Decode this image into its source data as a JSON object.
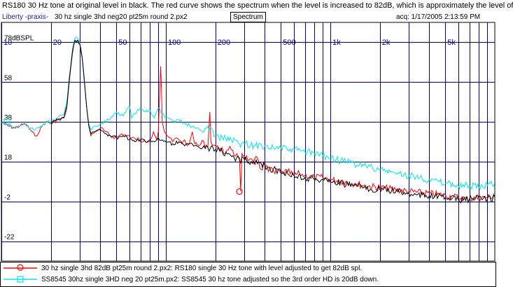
{
  "header": {
    "caption": "RS180 30 Hz tone at original level in black.  The red curve shows the spectrum when the level is increased to 82dB, which is approximately the level of",
    "app_name": "Liberty -praxis-",
    "file_name": "30 hz single 3hd neg20 pt25m round 2.px2",
    "mode_button": "Spectrum",
    "acq": "acq: 1/17/2005 2:13:59 PM"
  },
  "colors": {
    "background": "#ffffff",
    "grid": "#000080",
    "tick_label": "#000080",
    "red": "#ff0000",
    "cyan": "#00e5ee",
    "black": "#000000"
  },
  "chart_data": {
    "type": "line",
    "x_scale": "log",
    "xlim": [
      10,
      10000
    ],
    "ylim": [
      -32,
      88
    ],
    "x_tick_labels": [
      "10",
      "20",
      "50",
      "100",
      "200",
      "500",
      "1k",
      "2k",
      "5k"
    ],
    "x_tick_values": [
      10,
      20,
      50,
      100,
      200,
      500,
      1000,
      2000,
      5000
    ],
    "y_tick_labels": [
      "78dBSPL",
      "58",
      "38",
      "18",
      "-2",
      "-22"
    ],
    "y_tick_values": [
      78,
      58,
      38,
      18,
      -2,
      -22
    ],
    "grid": true,
    "series": [
      {
        "color": "red",
        "marker": "circle",
        "points": [
          [
            10,
            38
          ],
          [
            11,
            36
          ],
          [
            12,
            35
          ],
          [
            13,
            36
          ],
          [
            14,
            37
          ],
          [
            15,
            34
          ],
          [
            16,
            31
          ],
          [
            17,
            33
          ],
          [
            18,
            37
          ],
          [
            19,
            38
          ],
          [
            20,
            37
          ],
          [
            22,
            39
          ],
          [
            24,
            40
          ],
          [
            25,
            45
          ],
          [
            26,
            60
          ],
          [
            27,
            72
          ],
          [
            28,
            79
          ],
          [
            29,
            79
          ],
          [
            30,
            77
          ],
          [
            31,
            70
          ],
          [
            32,
            58
          ],
          [
            33,
            45
          ],
          [
            34,
            36
          ],
          [
            35,
            31
          ],
          [
            37,
            33
          ],
          [
            40,
            35
          ],
          [
            43,
            33
          ],
          [
            46,
            31
          ],
          [
            50,
            30
          ],
          [
            54,
            32
          ],
          [
            58,
            31
          ],
          [
            62,
            30
          ],
          [
            66,
            29
          ],
          [
            68,
            30
          ],
          [
            70,
            28
          ],
          [
            74,
            29
          ],
          [
            78,
            28
          ],
          [
            82,
            30
          ],
          [
            84,
            33
          ],
          [
            86,
            31
          ],
          [
            88,
            29
          ],
          [
            90,
            33
          ],
          [
            92,
            56
          ],
          [
            93,
            66
          ],
          [
            94,
            55
          ],
          [
            95,
            38
          ],
          [
            98,
            33
          ],
          [
            100,
            32
          ],
          [
            105,
            30
          ],
          [
            110,
            28
          ],
          [
            115,
            30
          ],
          [
            120,
            29
          ],
          [
            125,
            27
          ],
          [
            130,
            29
          ],
          [
            135,
            26
          ],
          [
            140,
            28
          ],
          [
            145,
            33
          ],
          [
            150,
            27
          ],
          [
            160,
            26
          ],
          [
            170,
            28
          ],
          [
            180,
            25
          ],
          [
            185,
            43
          ],
          [
            188,
            28
          ],
          [
            200,
            26
          ],
          [
            210,
            24
          ],
          [
            220,
            25
          ],
          [
            230,
            22
          ],
          [
            240,
            24
          ],
          [
            250,
            24
          ],
          [
            260,
            21
          ],
          [
            270,
            22
          ],
          [
            280,
            20
          ],
          [
            285,
            3
          ],
          [
            290,
            22
          ],
          [
            300,
            21
          ],
          [
            320,
            19
          ],
          [
            340,
            17
          ],
          [
            360,
            20
          ],
          [
            380,
            14
          ],
          [
            400,
            17
          ],
          [
            420,
            13
          ],
          [
            440,
            15
          ],
          [
            460,
            12
          ],
          [
            480,
            14
          ],
          [
            500,
            12
          ],
          [
            550,
            13
          ],
          [
            600,
            11
          ],
          [
            650,
            12
          ],
          [
            700,
            11
          ],
          [
            800,
            10
          ],
          [
            900,
            10
          ],
          [
            1000,
            9
          ],
          [
            1200,
            8
          ],
          [
            1400,
            7
          ],
          [
            1600,
            6
          ],
          [
            2000,
            5
          ],
          [
            2500,
            4
          ],
          [
            3000,
            3
          ],
          [
            4000,
            2
          ],
          [
            5000,
            1
          ],
          [
            6000,
            0
          ],
          [
            7000,
            -1
          ],
          [
            8000,
            0
          ],
          [
            9000,
            0
          ],
          [
            10000,
            1
          ]
        ]
      },
      {
        "color": "cyan",
        "marker": "square",
        "points": [
          [
            10,
            38
          ],
          [
            11,
            37
          ],
          [
            12,
            35
          ],
          [
            13,
            36
          ],
          [
            14,
            37
          ],
          [
            15,
            35
          ],
          [
            16,
            34
          ],
          [
            17,
            35
          ],
          [
            18,
            37
          ],
          [
            19,
            38
          ],
          [
            20,
            38
          ],
          [
            22,
            40
          ],
          [
            24,
            42
          ],
          [
            25,
            48
          ],
          [
            26,
            62
          ],
          [
            27,
            74
          ],
          [
            28,
            80
          ],
          [
            29,
            80
          ],
          [
            30,
            78
          ],
          [
            31,
            70
          ],
          [
            32,
            57
          ],
          [
            33,
            45
          ],
          [
            34,
            37
          ],
          [
            35,
            34
          ],
          [
            37,
            36
          ],
          [
            40,
            37
          ],
          [
            45,
            39
          ],
          [
            50,
            43
          ],
          [
            55,
            41
          ],
          [
            60,
            46
          ],
          [
            62,
            40
          ],
          [
            65,
            42
          ],
          [
            70,
            45
          ],
          [
            75,
            43
          ],
          [
            80,
            44
          ],
          [
            85,
            40
          ],
          [
            90,
            45
          ],
          [
            95,
            42
          ],
          [
            100,
            40
          ],
          [
            110,
            38
          ],
          [
            120,
            39
          ],
          [
            130,
            37
          ],
          [
            140,
            36
          ],
          [
            150,
            35
          ],
          [
            170,
            33
          ],
          [
            180,
            36
          ],
          [
            200,
            31
          ],
          [
            220,
            30
          ],
          [
            250,
            29
          ],
          [
            280,
            27
          ],
          [
            300,
            27
          ],
          [
            350,
            26
          ],
          [
            400,
            26
          ],
          [
            450,
            25
          ],
          [
            500,
            25
          ],
          [
            550,
            24
          ],
          [
            600,
            24
          ],
          [
            700,
            23
          ],
          [
            800,
            22
          ],
          [
            900,
            21
          ],
          [
            1000,
            20
          ],
          [
            1200,
            18
          ],
          [
            1400,
            17
          ],
          [
            1600,
            16
          ],
          [
            1800,
            15
          ],
          [
            2000,
            14
          ],
          [
            2500,
            12
          ],
          [
            3000,
            11
          ],
          [
            3500,
            10
          ],
          [
            4000,
            9
          ],
          [
            5000,
            7
          ],
          [
            6000,
            6
          ],
          [
            7000,
            6
          ],
          [
            8000,
            5
          ],
          [
            9000,
            6
          ],
          [
            10000,
            7
          ]
        ]
      },
      {
        "color": "black",
        "points": [
          [
            20,
            38
          ],
          [
            22,
            39
          ],
          [
            24,
            40
          ],
          [
            25,
            46
          ],
          [
            26,
            61
          ],
          [
            27,
            73
          ],
          [
            28,
            79
          ],
          [
            29,
            79
          ],
          [
            30,
            77
          ],
          [
            31,
            70
          ],
          [
            32,
            58
          ],
          [
            33,
            45
          ],
          [
            34,
            36
          ],
          [
            35,
            32
          ],
          [
            37,
            33
          ],
          [
            40,
            34
          ],
          [
            43,
            32
          ],
          [
            46,
            31
          ],
          [
            50,
            30
          ],
          [
            55,
            31
          ],
          [
            60,
            29
          ],
          [
            65,
            28
          ],
          [
            70,
            29
          ],
          [
            75,
            28
          ],
          [
            80,
            29
          ],
          [
            85,
            28
          ],
          [
            90,
            30
          ],
          [
            95,
            29
          ],
          [
            100,
            28
          ],
          [
            110,
            27
          ],
          [
            120,
            28
          ],
          [
            130,
            26
          ],
          [
            140,
            27
          ],
          [
            150,
            26
          ],
          [
            160,
            25
          ],
          [
            170,
            26
          ],
          [
            180,
            25
          ],
          [
            200,
            24
          ],
          [
            220,
            23
          ],
          [
            240,
            22
          ],
          [
            260,
            20
          ],
          [
            280,
            19
          ],
          [
            300,
            19
          ],
          [
            330,
            18
          ],
          [
            360,
            17
          ],
          [
            400,
            16
          ],
          [
            450,
            14
          ],
          [
            500,
            13
          ],
          [
            550,
            12
          ],
          [
            600,
            11
          ],
          [
            700,
            10
          ],
          [
            800,
            9
          ],
          [
            900,
            9
          ],
          [
            1000,
            8
          ],
          [
            1200,
            7
          ],
          [
            1400,
            6
          ],
          [
            1600,
            5
          ],
          [
            2000,
            4
          ],
          [
            2500,
            3
          ],
          [
            3000,
            2
          ],
          [
            4000,
            1
          ],
          [
            5000,
            0
          ],
          [
            6000,
            -1
          ],
          [
            7000,
            -1
          ],
          [
            8000,
            0
          ],
          [
            9000,
            -1
          ],
          [
            10000,
            0
          ]
        ]
      }
    ]
  },
  "legend": [
    {
      "color": "red",
      "marker": "circle",
      "text": "30 hz single 3hd 82dB pt25m round 2.px2:  RS180 single 30 Hz tone with level adjusted to get 82dB spl."
    },
    {
      "color": "cyan",
      "marker": "square",
      "text": "SS8545 30hz single 3HD neg 20 pt25m.px2:  SS8545 30 hz tone adjusted so the 3rd order HD is 20dB down."
    }
  ]
}
